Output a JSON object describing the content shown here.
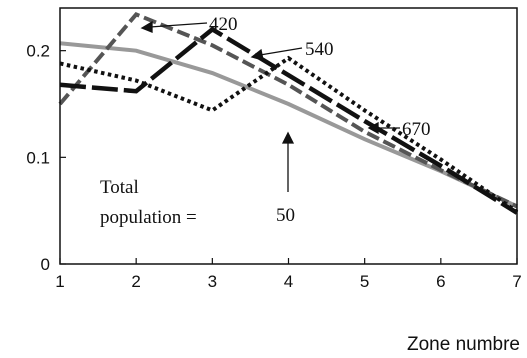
{
  "chart_data": {
    "type": "line",
    "title": "",
    "xlabel": "Zone numbre",
    "ylabel": "",
    "xlim": [
      1,
      7
    ],
    "ylim": [
      0,
      0.24
    ],
    "x_ticks": [
      "1",
      "2",
      "3",
      "4",
      "5",
      "6",
      "7"
    ],
    "y_ticks": [
      "0",
      "0.1",
      "0.2"
    ],
    "grid": false,
    "legend": "none",
    "x": [
      1,
      2,
      3,
      4,
      5,
      6,
      7
    ],
    "series": [
      {
        "label": "50",
        "values": [
          0.207,
          0.2,
          0.179,
          0.15,
          0.117,
          0.087,
          0.054
        ],
        "color": "#999999",
        "style": "solid"
      },
      {
        "label": "420",
        "values": [
          0.15,
          0.234,
          0.205,
          0.168,
          0.124,
          0.088,
          0.054
        ],
        "color": "#555555",
        "style": "dashed"
      },
      {
        "label": "540",
        "values": [
          0.168,
          0.162,
          0.22,
          0.177,
          0.134,
          0.092,
          0.048
        ],
        "color": "#111111",
        "style": "longdash"
      },
      {
        "label": "670",
        "values": [
          0.188,
          0.172,
          0.144,
          0.193,
          0.144,
          0.098,
          0.049
        ],
        "color": "#111111",
        "style": "dotted"
      }
    ],
    "annotations": {
      "total_line1": "Total",
      "total_line2": "population ="
    }
  }
}
